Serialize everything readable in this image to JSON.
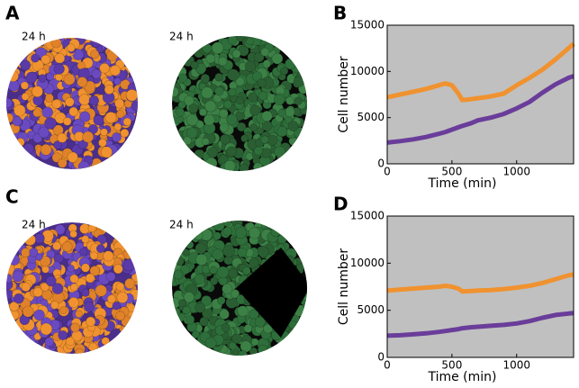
{
  "panels": [
    {
      "label": "A",
      "captions": [
        "24 h",
        "24 h"
      ]
    },
    {
      "label": "C",
      "captions": [
        "24 h",
        "24 h"
      ]
    }
  ],
  "chart_data": [
    {
      "type": "line",
      "panel": "B",
      "x_label": "Time (min)",
      "y_label": "Cell number",
      "background": "#c0c0c0",
      "x": [
        0,
        100,
        200,
        300,
        400,
        450,
        500,
        550,
        580,
        650,
        700,
        800,
        900,
        1000,
        1100,
        1200,
        1300,
        1400,
        1440
      ],
      "series": [
        {
          "color": "#f0922f",
          "values": [
            7200,
            7500,
            7800,
            8100,
            8500,
            8700,
            8500,
            7600,
            6900,
            7000,
            7100,
            7300,
            7600,
            8500,
            9300,
            10200,
            11300,
            12500,
            13000
          ]
        },
        {
          "color": "#6a3d9a",
          "values": [
            2300,
            2450,
            2650,
            2900,
            3250,
            3450,
            3700,
            3950,
            4100,
            4400,
            4700,
            5000,
            5400,
            6000,
            6700,
            7700,
            8600,
            9300,
            9500
          ]
        }
      ],
      "xlim": [
        0,
        1440
      ],
      "xticks": [
        0,
        500,
        1000
      ],
      "ylim": [
        0,
        15000
      ],
      "yticks": [
        0,
        5000,
        10000,
        15000
      ]
    },
    {
      "type": "line",
      "panel": "D",
      "x_label": "Time (min)",
      "y_label": "Cell number",
      "background": "#c0c0c0",
      "x": [
        0,
        100,
        200,
        300,
        400,
        450,
        500,
        550,
        580,
        650,
        700,
        800,
        900,
        1000,
        1100,
        1200,
        1300,
        1400,
        1440
      ],
      "series": [
        {
          "color": "#f0922f",
          "values": [
            7100,
            7200,
            7300,
            7400,
            7500,
            7600,
            7500,
            7300,
            7000,
            7050,
            7100,
            7150,
            7250,
            7400,
            7600,
            7900,
            8300,
            8700,
            8800
          ]
        },
        {
          "color": "#6a3d9a",
          "values": [
            2300,
            2350,
            2450,
            2550,
            2700,
            2800,
            2900,
            3000,
            3100,
            3200,
            3250,
            3350,
            3450,
            3600,
            3850,
            4200,
            4500,
            4650,
            4700
          ]
        }
      ],
      "xlim": [
        0,
        1440
      ],
      "xticks": [
        0,
        500,
        1000
      ],
      "ylim": [
        0,
        15000
      ],
      "yticks": [
        0,
        5000,
        10000,
        15000
      ]
    }
  ]
}
